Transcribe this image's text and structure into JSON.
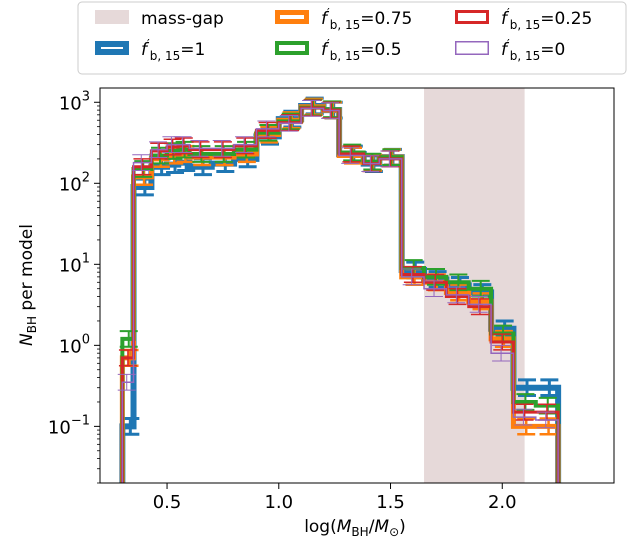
{
  "chart_data": {
    "type": "step-histogram",
    "xlabel": "log(M_BH/M_⊙)",
    "ylabel": "N_BH per model",
    "yscale": "log",
    "xlim": [
      0.2,
      2.5
    ],
    "ylim": [
      0.02,
      1500
    ],
    "x_ticks": [
      0.5,
      1.0,
      1.5,
      2.0
    ],
    "x_tick_labels": [
      "0.5",
      "1.0",
      "1.5",
      "2.0"
    ],
    "y_ticks": [
      0.1,
      1,
      10,
      100,
      1000
    ],
    "y_tick_labels": [
      {
        "base": "10",
        "exp": "−1"
      },
      {
        "base": "10",
        "exp": "0"
      },
      {
        "base": "10",
        "exp": "1"
      },
      {
        "base": "10",
        "exp": "2"
      },
      {
        "base": "10",
        "exp": "3"
      }
    ],
    "shaded_region": {
      "label": "mass-gap",
      "x0": 1.65,
      "x1": 2.1,
      "color": "#e6d9d9"
    },
    "bin_edges": [
      0.3,
      0.35,
      0.43,
      0.5,
      0.55,
      0.6,
      0.7,
      0.8,
      0.9,
      1.0,
      1.1,
      1.2,
      1.27,
      1.38,
      1.45,
      1.55,
      1.65,
      1.75,
      1.85,
      1.95,
      2.05,
      2.15,
      2.25
    ],
    "legend": {
      "location": "top",
      "entries": [
        {
          "series": "mass-gap",
          "label": "mass-gap"
        },
        {
          "series": "f1",
          "label_base": "f",
          "label_sup": "′",
          "label_sub": "b, 15",
          "label_value": "=1"
        },
        {
          "series": "f075",
          "label_base": "f",
          "label_sup": "′",
          "label_sub": "b, 15",
          "label_value": "=0.75"
        },
        {
          "series": "f05",
          "label_base": "f",
          "label_sup": "′",
          "label_sub": "b, 15",
          "label_value": "=0.5"
        },
        {
          "series": "f025",
          "label_base": "f",
          "label_sup": "′",
          "label_sub": "b, 15",
          "label_value": "=0.25"
        },
        {
          "series": "f0",
          "label_base": "f",
          "label_sup": "′",
          "label_sub": "b, 15",
          "label_value": "=0"
        }
      ]
    },
    "series": [
      {
        "id": "f1",
        "color": "#1f77b4",
        "width": 6,
        "values": [
          0.1,
          90,
          160,
          170,
          180,
          160,
          175,
          200,
          380,
          620,
          900,
          800,
          230,
          175,
          210,
          8.5,
          6.5,
          5.5,
          4.5,
          1.6,
          0.3,
          0.3
        ]
      },
      {
        "id": "f075",
        "color": "#ff7f0e",
        "width": 5,
        "values": [
          0.7,
          120,
          200,
          220,
          230,
          210,
          210,
          230,
          400,
          600,
          880,
          800,
          220,
          180,
          210,
          7,
          6,
          4.5,
          3.5,
          1.2,
          0.1,
          0.1
        ]
      },
      {
        "id": "f05",
        "color": "#2ca02c",
        "width": 4,
        "values": [
          1.2,
          150,
          220,
          250,
          260,
          230,
          230,
          260,
          420,
          580,
          860,
          820,
          240,
          185,
          210,
          9,
          7,
          6,
          5,
          1.4,
          0.2,
          0.18
        ]
      },
      {
        "id": "f025",
        "color": "#d62728",
        "width": 3,
        "values": [
          0.7,
          160,
          250,
          280,
          290,
          260,
          260,
          290,
          450,
          560,
          850,
          800,
          230,
          175,
          200,
          7.5,
          6,
          4,
          3,
          1.1,
          0.15,
          0.15
        ]
      },
      {
        "id": "f0",
        "color": "#9467bd",
        "width": 1.5,
        "values": [
          0.35,
          180,
          260,
          300,
          300,
          270,
          270,
          300,
          470,
          550,
          840,
          790,
          220,
          175,
          200,
          7,
          5,
          4.2,
          3.2,
          0.8,
          0.13,
          0.12
        ]
      }
    ]
  }
}
